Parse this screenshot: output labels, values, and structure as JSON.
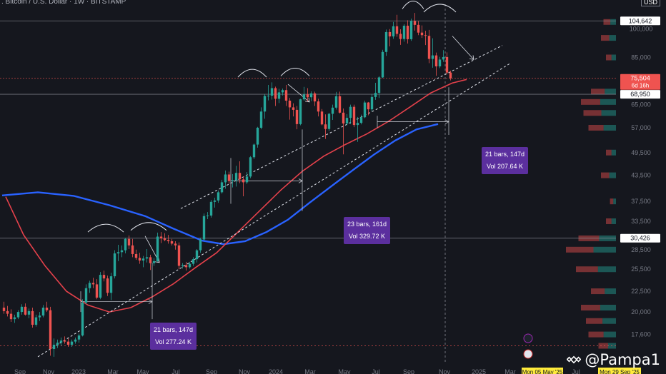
{
  "header": {
    "symbol_title": ". Bitcoin / U.S. Dollar · 1W · BITSTAMP",
    "currency": "USD"
  },
  "watermark": {
    "text": "@Pampa1"
  },
  "annotations": [
    {
      "bars": "21 bars, 147d",
      "vol": "Vol 277.24 K"
    },
    {
      "bars": "23 bars, 161d",
      "vol": "Vol 329.72 K"
    },
    {
      "bars": "21 bars, 147d",
      "vol": "Vol 207.64 K"
    }
  ],
  "colors": {
    "up": "#26a69a",
    "down": "#ef5350",
    "ma_red": "#e5414b",
    "ma_blue": "#2962ff",
    "price_tag": "#ef5350"
  },
  "chart_data": {
    "type": "candlestick",
    "y_scale": "log",
    "ylim": [
      15000,
      115000
    ],
    "y_ticks": [
      17600,
      20000,
      22500,
      25500,
      28500,
      33500,
      37500,
      43500,
      49500,
      57000,
      65000,
      85000,
      100000
    ],
    "price_labels": [
      {
        "value": "104,642",
        "style": "white"
      },
      {
        "value": "75,504",
        "style": "red",
        "sub": "6d 16h"
      },
      {
        "value": "68,950",
        "style": "white"
      },
      {
        "value": "30,426",
        "style": "white"
      }
    ],
    "x_ticks": [
      "Sep",
      "Nov",
      "2023",
      "Mar",
      "May",
      "Jul",
      "Sep",
      "Nov",
      "2024",
      "Mar",
      "May",
      "Jul",
      "Sep",
      "Nov",
      "2025",
      "Mar",
      "May",
      "Jul",
      "Sep"
    ],
    "date_tags": [
      "Mon 05 May '25",
      "Mon 29 Sep '25"
    ],
    "horizontal_levels": [
      104642,
      75504,
      68950,
      30426,
      16500
    ],
    "candles": [
      [
        20500,
        21200,
        19800,
        20100
      ],
      [
        20100,
        20700,
        19500,
        19800
      ],
      [
        19800,
        20300,
        18900,
        19200
      ],
      [
        19200,
        19700,
        18800,
        19400
      ],
      [
        19400,
        20200,
        19200,
        20000
      ],
      [
        20000,
        20900,
        19700,
        20600
      ],
      [
        20600,
        21000,
        19600,
        19700
      ],
      [
        19700,
        20400,
        19300,
        20100
      ],
      [
        20100,
        20500,
        18300,
        18600
      ],
      [
        18600,
        19700,
        18400,
        19400
      ],
      [
        19400,
        20000,
        19000,
        19600
      ],
      [
        19600,
        20800,
        19400,
        20500
      ],
      [
        20500,
        21200,
        20000,
        20200
      ],
      [
        20200,
        20600,
        15600,
        16200
      ],
      [
        16200,
        17200,
        15500,
        16600
      ],
      [
        16600,
        17100,
        16300,
        16800
      ],
      [
        16800,
        17300,
        16500,
        17000
      ],
      [
        17000,
        17400,
        16700,
        16900
      ],
      [
        16900,
        17200,
        16400,
        16600
      ],
      [
        16600,
        17100,
        16400,
        16900
      ],
      [
        16900,
        17300,
        16700,
        17100
      ],
      [
        17100,
        17700,
        16800,
        17500
      ],
      [
        17500,
        21500,
        17400,
        21100
      ],
      [
        21100,
        23400,
        20900,
        22900
      ],
      [
        22900,
        23900,
        22300,
        23600
      ],
      [
        23600,
        24300,
        22900,
        23400
      ],
      [
        23400,
        24100,
        21500,
        21700
      ],
      [
        21700,
        25100,
        21500,
        24700
      ],
      [
        24700,
        25300,
        23800,
        24200
      ],
      [
        24200,
        24600,
        21900,
        22300
      ],
      [
        22300,
        25000,
        21400,
        24500
      ],
      [
        24500,
        28400,
        24200,
        27900
      ],
      [
        27900,
        29300,
        26700,
        28100
      ],
      [
        28100,
        29200,
        27300,
        28400
      ],
      [
        28400,
        30500,
        27900,
        30300
      ],
      [
        30300,
        30900,
        28600,
        29200
      ],
      [
        29200,
        30300,
        27300,
        27800
      ],
      [
        27800,
        28500,
        26900,
        27200
      ],
      [
        27200,
        28000,
        26300,
        26800
      ],
      [
        26800,
        27500,
        25800,
        27100
      ],
      [
        27100,
        28600,
        26500,
        27300
      ],
      [
        27300,
        27700,
        25400,
        26400
      ],
      [
        26400,
        27200,
        26000,
        26700
      ],
      [
        26700,
        31400,
        26600,
        30700
      ],
      [
        30700,
        31500,
        29600,
        30400
      ],
      [
        30400,
        31300,
        29900,
        30100
      ],
      [
        30100,
        31000,
        29500,
        29900
      ],
      [
        29900,
        30300,
        29200,
        29500
      ],
      [
        29500,
        29900,
        28500,
        29200
      ],
      [
        29200,
        29700,
        25500,
        26000
      ],
      [
        26000,
        26400,
        25600,
        26100
      ],
      [
        26100,
        26600,
        25300,
        25800
      ],
      [
        25800,
        26600,
        25600,
        26300
      ],
      [
        26300,
        27300,
        26000,
        27000
      ],
      [
        27000,
        28600,
        26500,
        28400
      ],
      [
        28400,
        30500,
        28000,
        30200
      ],
      [
        30200,
        35000,
        30000,
        34500
      ],
      [
        34500,
        35300,
        33900,
        34600
      ],
      [
        34600,
        37800,
        34200,
        37400
      ],
      [
        37400,
        38300,
        36200,
        37700
      ],
      [
        37700,
        39900,
        37200,
        39500
      ],
      [
        39500,
        42400,
        39200,
        41800
      ],
      [
        41800,
        44700,
        40300,
        43700
      ],
      [
        43700,
        44400,
        41400,
        42100
      ],
      [
        42100,
        43800,
        40600,
        42300
      ],
      [
        42300,
        45900,
        40800,
        44100
      ],
      [
        44100,
        47100,
        41600,
        42500
      ],
      [
        42500,
        43200,
        38600,
        41800
      ],
      [
        41800,
        44300,
        41400,
        43200
      ],
      [
        43200,
        48500,
        42800,
        48200
      ],
      [
        48200,
        52100,
        47700,
        51800
      ],
      [
        51800,
        57300,
        50900,
        57000
      ],
      [
        57000,
        64000,
        56500,
        62500
      ],
      [
        62500,
        69000,
        60000,
        68300
      ],
      [
        68300,
        72700,
        66600,
        68400
      ],
      [
        68400,
        73800,
        66900,
        71400
      ],
      [
        71400,
        72000,
        64500,
        67200
      ],
      [
        67200,
        71100,
        65600,
        69700
      ],
      [
        69700,
        71200,
        68500,
        70600
      ],
      [
        70600,
        72700,
        64500,
        66500
      ],
      [
        66500,
        67500,
        59700,
        64000
      ],
      [
        64000,
        65500,
        60800,
        63100
      ],
      [
        63100,
        64500,
        56500,
        58200
      ],
      [
        58200,
        67200,
        57800,
        67000
      ],
      [
        67000,
        71900,
        66500,
        68900
      ],
      [
        68900,
        71400,
        66200,
        67800
      ],
      [
        67800,
        70100,
        66300,
        69300
      ],
      [
        69300,
        70000,
        64500,
        66200
      ],
      [
        66200,
        67200,
        60800,
        62500
      ],
      [
        62500,
        63400,
        57800,
        58100
      ],
      [
        58100,
        61500,
        53500,
        56600
      ],
      [
        56600,
        62000,
        56000,
        61700
      ],
      [
        61700,
        65000,
        59600,
        63900
      ],
      [
        63900,
        69900,
        63200,
        68200
      ],
      [
        68200,
        70000,
        61800,
        62100
      ],
      [
        62100,
        63600,
        49000,
        58400
      ],
      [
        58400,
        61600,
        57800,
        60300
      ],
      [
        60300,
        65000,
        58200,
        64200
      ],
      [
        64200,
        65000,
        57200,
        57900
      ],
      [
        57900,
        60600,
        52600,
        58600
      ],
      [
        58600,
        61400,
        58100,
        60500
      ],
      [
        60500,
        66500,
        60200,
        65800
      ],
      [
        65800,
        66000,
        61200,
        63300
      ],
      [
        63300,
        69000,
        62600,
        67900
      ],
      [
        67900,
        73600,
        66800,
        69500
      ],
      [
        69500,
        76400,
        67500,
        75900
      ],
      [
        75900,
        88800,
        75600,
        87700
      ],
      [
        87700,
        99600,
        85800,
        98200
      ],
      [
        98200,
        99900,
        90500,
        95800
      ],
      [
        95800,
        104000,
        94500,
        101500
      ],
      [
        101500,
        108300,
        95600,
        97200
      ],
      [
        97200,
        99800,
        91300,
        94400
      ],
      [
        94400,
        102700,
        93000,
        101800
      ],
      [
        101800,
        105000,
        92000,
        94300
      ],
      [
        94300,
        106000,
        93400,
        104600
      ],
      [
        104600,
        109500,
        99000,
        102300
      ],
      [
        102300,
        104500,
        96500,
        97900
      ],
      [
        97900,
        102000,
        95000,
        96500
      ],
      [
        96500,
        98900,
        91200,
        96100
      ],
      [
        96100,
        99400,
        82300,
        84300
      ],
      [
        84300,
        94800,
        80200,
        86000
      ],
      [
        86000,
        87400,
        76600,
        80800
      ],
      [
        80800,
        85300,
        80000,
        84000
      ],
      [
        84000,
        88600,
        82900,
        85200
      ],
      [
        85200,
        87500,
        77200,
        78000
      ],
      [
        78000,
        78800,
        74600,
        75500
      ]
    ],
    "ma_red_points": [
      [
        1,
        38500
      ],
      [
        6,
        31000
      ],
      [
        12,
        26000
      ],
      [
        18,
        22500
      ],
      [
        24,
        20800
      ],
      [
        30,
        20000
      ],
      [
        36,
        20500
      ],
      [
        42,
        21800
      ],
      [
        48,
        23500
      ],
      [
        54,
        25700
      ],
      [
        60,
        28000
      ],
      [
        66,
        31500
      ],
      [
        72,
        35500
      ],
      [
        78,
        40000
      ],
      [
        84,
        44500
      ],
      [
        90,
        48500
      ],
      [
        96,
        51800
      ],
      [
        102,
        55000
      ],
      [
        108,
        59000
      ],
      [
        114,
        64000
      ],
      [
        120,
        69500
      ],
      [
        126,
        73500
      ],
      [
        130,
        75000
      ]
    ],
    "ma_blue_points": [
      [
        0,
        38800
      ],
      [
        10,
        39500
      ],
      [
        20,
        38700
      ],
      [
        30,
        36700
      ],
      [
        40,
        34500
      ],
      [
        48,
        32100
      ],
      [
        56,
        30000
      ],
      [
        62,
        29400
      ],
      [
        68,
        29900
      ],
      [
        74,
        31500
      ],
      [
        80,
        33800
      ],
      [
        86,
        37200
      ],
      [
        92,
        40800
      ],
      [
        98,
        44700
      ],
      [
        104,
        48900
      ],
      [
        110,
        53000
      ],
      [
        116,
        56500
      ],
      [
        122,
        58200
      ]
    ],
    "volume_profile": [
      [
        16500,
        0.35
      ],
      [
        17600,
        0.55
      ],
      [
        19000,
        0.6
      ],
      [
        20500,
        0.7
      ],
      [
        22500,
        0.5
      ],
      [
        25500,
        0.8
      ],
      [
        28500,
        1.0
      ],
      [
        30400,
        0.75
      ],
      [
        33500,
        0.2
      ],
      [
        37500,
        0.12
      ],
      [
        43500,
        0.3
      ],
      [
        49500,
        0.2
      ],
      [
        57000,
        0.55
      ],
      [
        62000,
        0.65
      ],
      [
        66000,
        0.7
      ],
      [
        70000,
        0.5
      ],
      [
        85000,
        0.2
      ],
      [
        95000,
        0.3
      ],
      [
        104000,
        0.25
      ]
    ],
    "measure_boxes": [
      {
        "from": 22,
        "to": 42,
        "low": 20000,
        "high": 22500
      },
      {
        "from": 64,
        "to": 84,
        "low": 37000,
        "high": 48000
      },
      {
        "from": 105,
        "to": 125,
        "low": 57000,
        "high": 61000
      }
    ],
    "arcs": [
      [
        24,
        34,
        31500
      ],
      [
        36,
        46,
        31800
      ],
      [
        66,
        74,
        76000
      ],
      [
        78,
        86,
        76500
      ],
      [
        112,
        118,
        112000
      ],
      [
        118,
        127,
        110000
      ]
    ],
    "trend_lines": [
      {
        "from_x": 10,
        "from_y": 15500,
        "to_x": 142,
        "to_y": 82000
      },
      {
        "from_x": 50,
        "from_y": 36000,
        "to_x": 140,
        "to_y": 91000
      }
    ]
  }
}
